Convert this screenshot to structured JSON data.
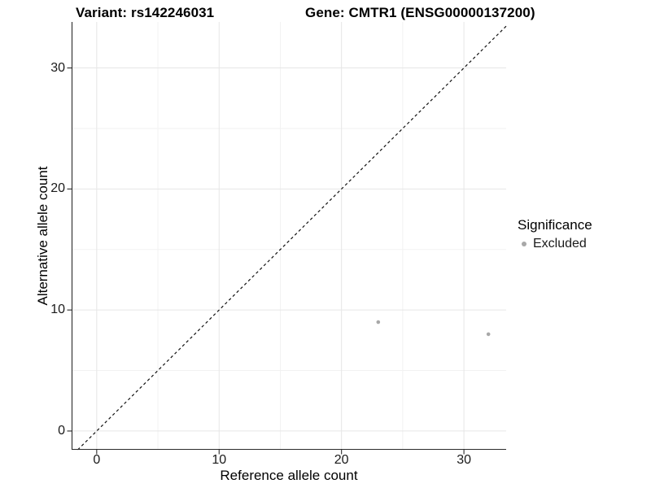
{
  "chart_data": {
    "type": "scatter",
    "title_left": "Variant: rs142246031",
    "title_right": "Gene: CMTR1 (ENSG00000137200)",
    "xlabel": "Reference allele count",
    "ylabel": "Alternative allele count",
    "xlim": [
      -2.05,
      33.45
    ],
    "ylim": [
      -1.55,
      33.8
    ],
    "xticks": [
      0,
      10,
      20,
      30
    ],
    "yticks": [
      0,
      10,
      20,
      30
    ],
    "xticks_minor": [
      5,
      15,
      25
    ],
    "yticks_minor": [
      5,
      15,
      25
    ],
    "grid": "major and minor gridlines on white background",
    "identity_line": {
      "equation": "y = x",
      "slope": 1,
      "intercept": 0,
      "style": "dashed",
      "color": "#111111"
    },
    "series": [
      {
        "name": "Excluded",
        "color": "#a8a8a8",
        "marker": "circle",
        "points": [
          [
            23,
            9
          ],
          [
            32,
            8
          ]
        ]
      }
    ],
    "legend": {
      "title": "Significance",
      "position": "right",
      "entries": [
        {
          "label": "Excluded",
          "color": "#a8a8a8"
        }
      ]
    }
  },
  "colors": {
    "background": "#ffffff",
    "axis": "#2b2b2b",
    "grid_major": "#e6e6e6",
    "grid_minor": "#f2f2f2",
    "tick_text": "#1a1a1a",
    "title_text": "#000000",
    "point": "#a8a8a8"
  }
}
